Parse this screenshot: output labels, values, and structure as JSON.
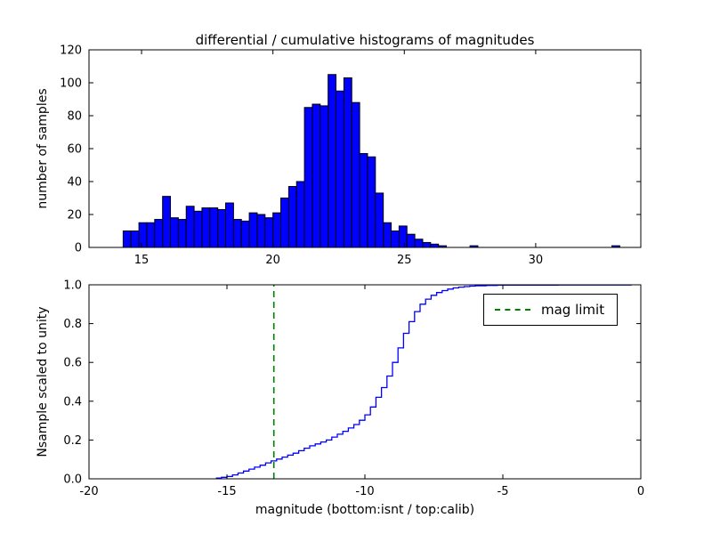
{
  "figure": {
    "background": "#ffffff",
    "frame_color": "#000000"
  },
  "chart_data": [
    {
      "type": "bar",
      "title": "differential / cumulative histograms of magnitudes",
      "ylabel": "number of samples",
      "xlabel": "",
      "xlim": [
        13,
        34
      ],
      "ylim": [
        0,
        120
      ],
      "xticks": [
        15,
        20,
        25,
        30
      ],
      "xticklabels": [
        "15",
        "20",
        "25",
        "30"
      ],
      "yticks": [
        0,
        20,
        40,
        60,
        80,
        100,
        120
      ],
      "yticklabels": [
        "0",
        "20",
        "40",
        "60",
        "80",
        "100",
        "120"
      ],
      "bar_color": "#0000ff",
      "edge_color": "#000000",
      "grid": false,
      "bin_start": 14.3,
      "bin_width": 0.3,
      "counts": [
        10,
        10,
        15,
        15,
        17,
        31,
        18,
        17,
        25,
        22,
        24,
        24,
        23,
        27,
        17,
        16,
        21,
        20,
        18,
        21,
        30,
        37,
        40,
        85,
        87,
        86,
        105,
        95,
        103,
        88,
        57,
        55,
        33,
        15,
        10,
        13,
        8,
        5,
        3,
        2,
        1,
        0,
        0,
        0,
        1,
        0,
        0,
        0,
        0,
        0,
        0,
        0,
        0,
        0,
        0,
        0,
        0,
        0,
        0,
        0,
        0,
        0,
        1
      ]
    },
    {
      "type": "line",
      "title": "",
      "ylabel": "Nsample scaled to unity",
      "xlabel": "magnitude (bottom:isnt / top:calib)",
      "xlim": [
        -20,
        0
      ],
      "ylim": [
        0,
        1
      ],
      "xticks": [
        -20,
        -15,
        -10,
        -5,
        0
      ],
      "xticklabels": [
        "-20",
        "-15",
        "-10",
        "-5",
        "0"
      ],
      "yticks": [
        0,
        0.2,
        0.4,
        0.6,
        0.8,
        1.0
      ],
      "yticklabels": [
        "0.0",
        "0.2",
        "0.4",
        "0.6",
        "0.8",
        "1.0"
      ],
      "line_color": "#0000ff",
      "drawstyle": "steps-post",
      "grid": false,
      "points": [
        [
          -15.4,
          0.004
        ],
        [
          -15.2,
          0.008
        ],
        [
          -15.0,
          0.012
        ],
        [
          -14.8,
          0.02
        ],
        [
          -14.6,
          0.03
        ],
        [
          -14.4,
          0.04
        ],
        [
          -14.2,
          0.05
        ],
        [
          -14.0,
          0.06
        ],
        [
          -13.8,
          0.07
        ],
        [
          -13.6,
          0.082
        ],
        [
          -13.4,
          0.092
        ],
        [
          -13.2,
          0.102
        ],
        [
          -13.0,
          0.112
        ],
        [
          -12.8,
          0.122
        ],
        [
          -12.6,
          0.132
        ],
        [
          -12.4,
          0.145
        ],
        [
          -12.2,
          0.158
        ],
        [
          -12.0,
          0.17
        ],
        [
          -11.8,
          0.18
        ],
        [
          -11.6,
          0.19
        ],
        [
          -11.4,
          0.2
        ],
        [
          -11.2,
          0.215
        ],
        [
          -11.0,
          0.23
        ],
        [
          -10.8,
          0.245
        ],
        [
          -10.6,
          0.262
        ],
        [
          -10.4,
          0.28
        ],
        [
          -10.2,
          0.302
        ],
        [
          -10.0,
          0.33
        ],
        [
          -9.8,
          0.37
        ],
        [
          -9.6,
          0.42
        ],
        [
          -9.4,
          0.47
        ],
        [
          -9.2,
          0.53
        ],
        [
          -9.0,
          0.6
        ],
        [
          -8.8,
          0.675
        ],
        [
          -8.6,
          0.75
        ],
        [
          -8.4,
          0.81
        ],
        [
          -8.2,
          0.862
        ],
        [
          -8.0,
          0.9
        ],
        [
          -7.8,
          0.926
        ],
        [
          -7.6,
          0.946
        ],
        [
          -7.4,
          0.96
        ],
        [
          -7.2,
          0.97
        ],
        [
          -7.0,
          0.978
        ],
        [
          -6.8,
          0.984
        ],
        [
          -6.6,
          0.988
        ],
        [
          -6.4,
          0.991
        ],
        [
          -6.2,
          0.993
        ],
        [
          -6.0,
          0.995
        ],
        [
          -5.6,
          0.997
        ],
        [
          -5.2,
          0.998
        ],
        [
          -4.5,
          0.9985
        ],
        [
          -3.0,
          0.999
        ],
        [
          -0.5,
          0.999
        ],
        [
          -0.35,
          1.0
        ]
      ],
      "vline": {
        "x": -13.3,
        "color": "#008000",
        "style": "dashed",
        "label": "mag limit"
      },
      "legend": {
        "position": "upper right",
        "entries": [
          "mag limit"
        ]
      }
    }
  ]
}
